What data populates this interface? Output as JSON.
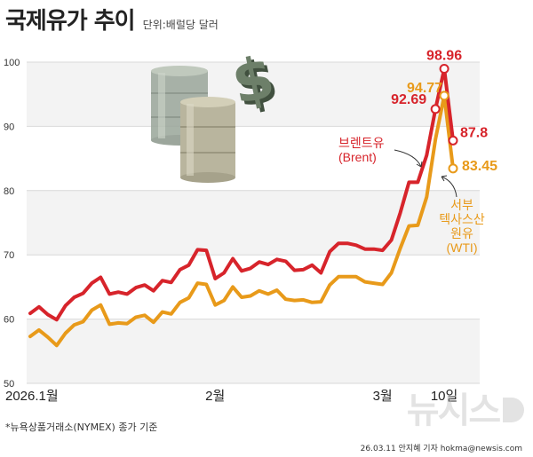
{
  "title": "국제유가 추이",
  "unit": "단위:배럴당 달러",
  "footnote": "*뉴욕상품거래소(NYMEX) 종가 기준",
  "credit": "26.03.11 안지혜 기자 hokma@newsis.com",
  "watermark": "뉴시스",
  "colors": {
    "brent": "#d7242b",
    "wti": "#e89a1a",
    "grid": "#d9d9d9",
    "band": "#f3f3f3"
  },
  "chart_data": {
    "type": "line",
    "ylim": [
      50,
      100
    ],
    "yticks": [
      50,
      60,
      70,
      80,
      90,
      100
    ],
    "x_labels": [
      {
        "index": 0,
        "label": "2026.1월"
      },
      {
        "index": 21,
        "label": "2월"
      },
      {
        "index": 40,
        "label": "3월"
      },
      {
        "index": 47,
        "label": "10일"
      }
    ],
    "series": [
      {
        "name": "브렌트유\n(Brent)",
        "values": [
          60.9,
          61.9,
          60.7,
          59.9,
          62.1,
          63.4,
          64.0,
          65.6,
          66.5,
          63.9,
          64.2,
          63.9,
          64.9,
          65.3,
          64.4,
          66.0,
          65.7,
          67.7,
          68.4,
          70.8,
          70.7,
          66.3,
          67.2,
          69.4,
          67.5,
          67.9,
          68.9,
          68.5,
          69.3,
          69.0,
          67.6,
          67.7,
          68.4,
          67.2,
          70.5,
          71.8,
          71.8,
          71.5,
          70.9,
          70.9,
          70.7,
          72.3,
          76.5,
          81.3,
          81.3,
          85.5,
          92.69,
          98.96,
          87.8
        ],
        "labels": [
          "92.69",
          "98.96",
          "87.8"
        ]
      },
      {
        "name": "서부\n텍사스산\n원유\n(WTI)",
        "values": [
          57.3,
          58.3,
          57.2,
          55.9,
          57.8,
          59.1,
          59.6,
          61.4,
          62.2,
          59.2,
          59.4,
          59.3,
          60.3,
          60.6,
          59.5,
          61.1,
          60.8,
          62.6,
          63.3,
          65.6,
          65.4,
          62.2,
          62.9,
          65.0,
          63.4,
          63.6,
          64.4,
          63.9,
          64.5,
          63.1,
          62.9,
          63.0,
          62.6,
          62.7,
          65.3,
          66.6,
          66.6,
          66.6,
          65.8,
          65.6,
          65.4,
          67.2,
          71.0,
          74.5,
          74.6,
          79.0,
          88.0,
          94.77,
          83.45
        ],
        "labels": [
          "94.77",
          "83.45"
        ]
      }
    ]
  }
}
